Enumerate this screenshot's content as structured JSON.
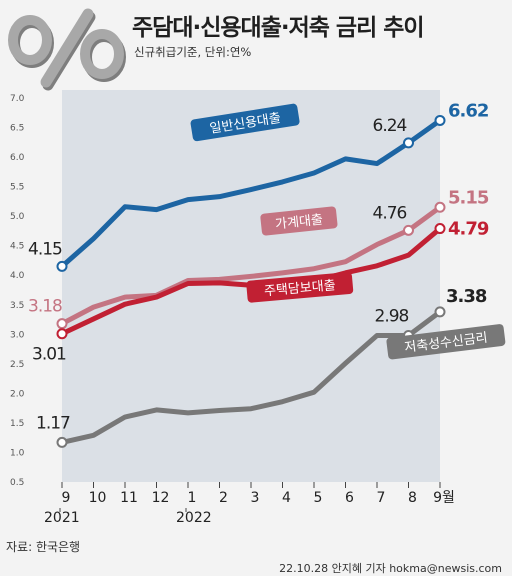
{
  "header": {
    "logo_text": "%",
    "title": "주담대·신용대출·저축 금리 추이",
    "subtitle": "신규취급기준, 단위:연%"
  },
  "footer": {
    "source": "자료: 한국은행",
    "credit": "22.10.28 안지혜 기자 hokma@newsis.com"
  },
  "colors": {
    "credit_loan": "#1d65a3",
    "household_loan": "#c47482",
    "mortgage": "#c12033",
    "savings": "#787878",
    "plot_bg": "#dbe0e6",
    "background": "#f3f3f3"
  },
  "chart_data": {
    "type": "line",
    "categories": [
      "9",
      "10",
      "11",
      "12",
      "1",
      "2",
      "3",
      "4",
      "5",
      "6",
      "7",
      "8",
      "9월"
    ],
    "year_labels": [
      {
        "label": "2021",
        "category_index": 0
      },
      {
        "label": "2022",
        "category_index": 4
      }
    ],
    "y_ticks": [
      "0.5",
      "1.0",
      "1.5",
      "2.0",
      "2.5",
      "3.0",
      "3.5",
      "4.0",
      "4.5",
      "5.0",
      "5.5",
      "6.0",
      "6.5",
      "7.0"
    ],
    "ylim": [
      0.5,
      7.0
    ],
    "grid": false,
    "series": [
      {
        "name": "일반신용대출",
        "key": "credit_loan",
        "label_style": "box",
        "values": [
          4.15,
          4.62,
          5.16,
          5.11,
          5.28,
          5.33,
          5.45,
          5.58,
          5.73,
          5.97,
          5.89,
          6.24,
          6.62
        ],
        "endpoint_labels": [
          {
            "index": 0,
            "text": "4.15"
          },
          {
            "index": 11,
            "text": "6.24"
          },
          {
            "index": 12,
            "text": "6.62"
          }
        ]
      },
      {
        "name": "가계대출",
        "key": "household_loan",
        "label_style": "box",
        "values": [
          3.18,
          3.46,
          3.63,
          3.66,
          3.91,
          3.93,
          3.98,
          4.04,
          4.11,
          4.23,
          4.52,
          4.76,
          5.15
        ],
        "endpoint_labels": [
          {
            "index": 0,
            "text": "3.18"
          },
          {
            "index": 11,
            "text": "4.76"
          },
          {
            "index": 12,
            "text": "5.15"
          }
        ]
      },
      {
        "name": "주택담보대출",
        "key": "mortgage",
        "label_style": "box",
        "values": [
          3.01,
          3.26,
          3.51,
          3.63,
          3.86,
          3.87,
          3.83,
          3.87,
          3.9,
          4.04,
          4.16,
          4.34,
          4.79
        ],
        "endpoint_labels": [
          {
            "index": 0,
            "text": "3.01"
          },
          {
            "index": 12,
            "text": "4.79"
          }
        ]
      },
      {
        "name": "저축성수신금리",
        "key": "savings",
        "label_style": "box",
        "values": [
          1.17,
          1.29,
          1.6,
          1.72,
          1.67,
          1.71,
          1.74,
          1.86,
          2.02,
          2.51,
          2.98,
          2.98,
          3.38
        ],
        "endpoint_labels": [
          {
            "index": 0,
            "text": "1.17"
          },
          {
            "index": 11,
            "text": "2.98"
          },
          {
            "index": 12,
            "text": "3.38"
          }
        ]
      }
    ]
  }
}
